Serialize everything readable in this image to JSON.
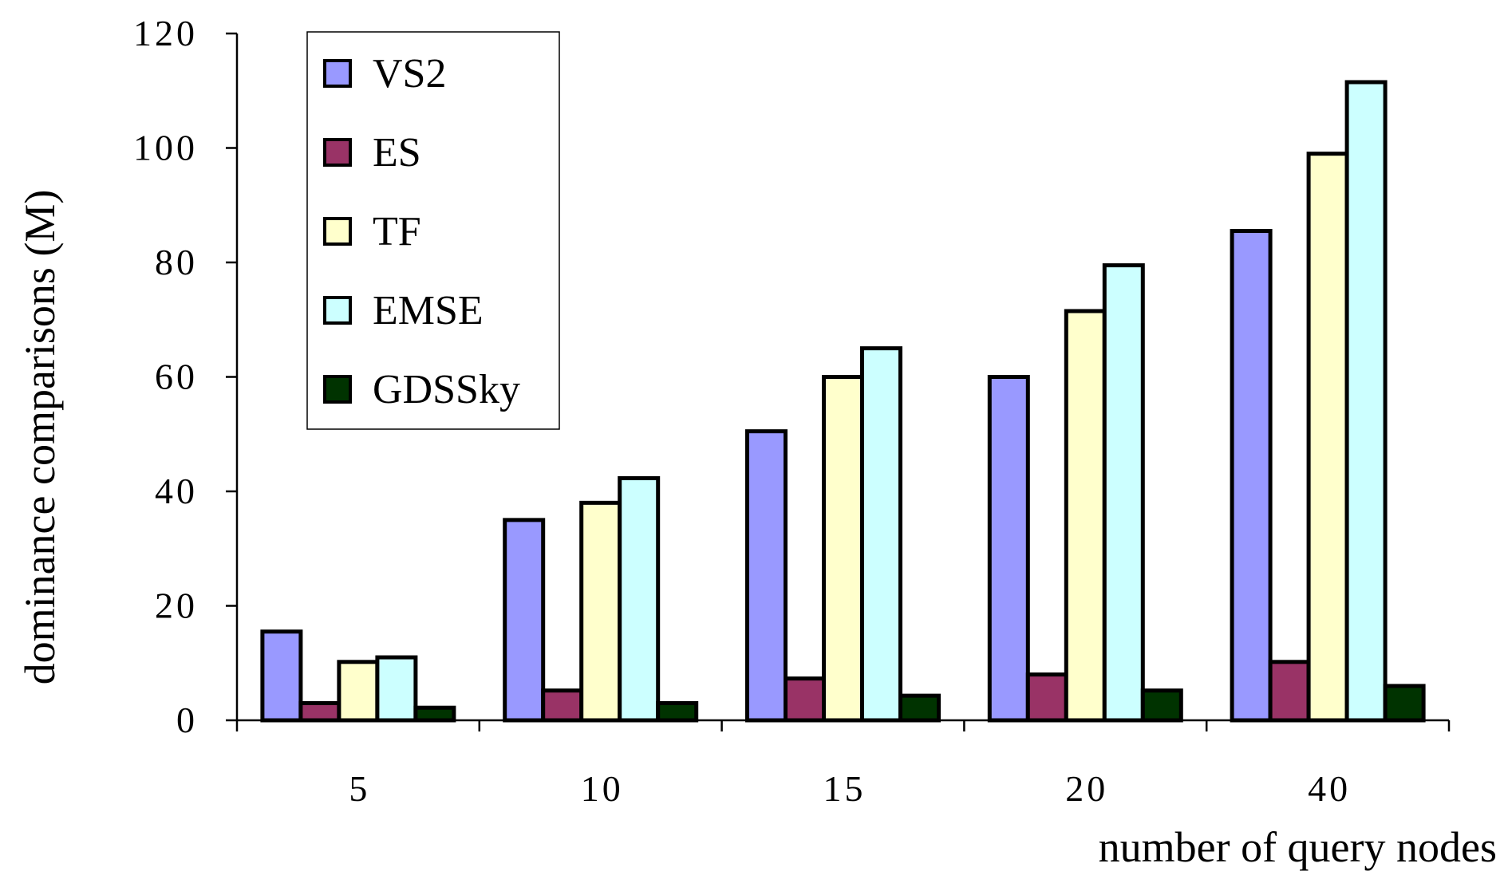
{
  "chart_data": {
    "type": "bar",
    "title": "",
    "xlabel": "number of query nodes",
    "ylabel": "dominance comparisons (M)",
    "categories": [
      "5",
      "10",
      "15",
      "20",
      "40"
    ],
    "ylim": [
      0,
      120
    ],
    "yticks": [
      "0",
      "20",
      "40",
      "60",
      "80",
      "100",
      "120"
    ],
    "grid": false,
    "legend_position": "top-left",
    "series": [
      {
        "name": "VS2",
        "color": "#9999ff",
        "values": [
          15.5,
          35,
          50.5,
          60,
          85.5
        ]
      },
      {
        "name": "ES",
        "color": "#993366",
        "values": [
          3,
          5.2,
          7.3,
          8,
          10.2
        ]
      },
      {
        "name": "TF",
        "color": "#ffffcc",
        "values": [
          10.2,
          38,
          60,
          71.5,
          99
        ]
      },
      {
        "name": "EMSE",
        "color": "#ccffff",
        "values": [
          11,
          42.3,
          65,
          79.5,
          111.5
        ]
      },
      {
        "name": "GDSSky",
        "color": "#003300",
        "values": [
          2.2,
          3,
          4.3,
          5.2,
          6
        ]
      }
    ]
  }
}
